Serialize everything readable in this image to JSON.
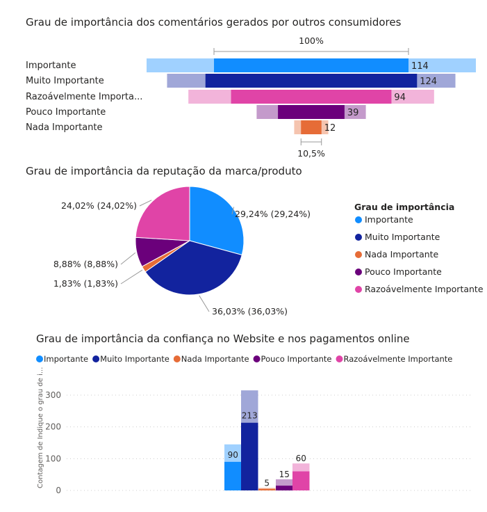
{
  "chart_data": [
    {
      "type": "funnel",
      "title": "Grau de importância dos comentários gerados por outros consumidores",
      "categories": [
        "Importante",
        "Muito Importante",
        "Razoávelmente Importa...",
        "Pouco Importante",
        "Nada Importante"
      ],
      "values": [
        114,
        124,
        94,
        39,
        12
      ],
      "background_values": [
        193,
        169,
        144,
        64,
        20
      ],
      "top_label": "100%",
      "bottom_label": "10,5%",
      "colors": [
        "#118DFF",
        "#12239E",
        "#E044A7",
        "#6B007B",
        "#E66C37"
      ],
      "light_colors": [
        "#A0D1FF",
        "#A0A7D8",
        "#F2B4DA",
        "#C49ACB",
        "#F5C4AF"
      ]
    },
    {
      "type": "pie",
      "title": "Grau de importância da reputação da marca/produto",
      "legend_title": "Grau de importância",
      "legend_position": "right",
      "categories": [
        "Importante",
        "Muito Importante",
        "Nada Importante",
        "Pouco Importante",
        "Razoávelmente Importante"
      ],
      "values": [
        29.24,
        36.03,
        1.83,
        8.88,
        24.02
      ],
      "labels": [
        "29,24% (29,24%)",
        "36,03% (36,03%)",
        "1,83% (1,83%)",
        "8,88% (8,88%)",
        "24,02% (24,02%)"
      ],
      "colors": [
        "#118DFF",
        "#12239E",
        "#E66C37",
        "#6B007B",
        "#E044A7"
      ]
    },
    {
      "type": "bar",
      "title": "Grau de importância da confiança no Website e nos pagamentos online",
      "ylabel": "Contagem de Indique o grau de i...",
      "ylim": [
        0,
        300
      ],
      "yticks": [
        "0",
        "100",
        "200",
        "300"
      ],
      "grid": true,
      "legend_position": "top-left",
      "categories": [
        "Importante",
        "Muito Importante",
        "Nada Importante",
        "Pouco Importante",
        "Razoávelmente Importante"
      ],
      "values": [
        90,
        213,
        5,
        15,
        60
      ],
      "total_values": [
        145,
        315,
        8,
        35,
        85
      ],
      "colors": [
        "#118DFF",
        "#12239E",
        "#E66C37",
        "#6B007B",
        "#E044A7"
      ],
      "light_colors": [
        "#A0D1FF",
        "#A0A7D8",
        "#F5C4AF",
        "#C49ACB",
        "#F2B4DA"
      ]
    }
  ]
}
